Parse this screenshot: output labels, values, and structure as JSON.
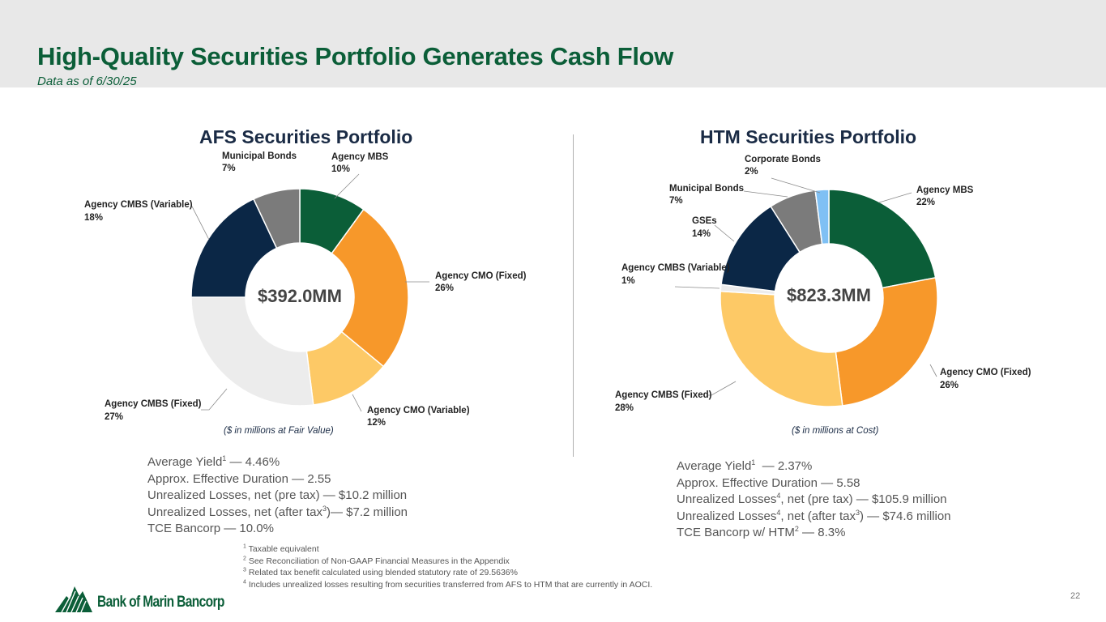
{
  "header": {
    "title": "High-Quality Securities Portfolio Generates Cash Flow",
    "subtitle": "Data as of 6/30/25"
  },
  "colors": {
    "green": "#0b5e38",
    "orange": "#f7982a",
    "light_orange": "#fdc966",
    "light_gray": "#ececec",
    "navy": "#0b2746",
    "gray": "#7b7b7b",
    "light_blue": "#7fc0f4"
  },
  "chart_data": [
    {
      "type": "pie",
      "title": "AFS Securities Portfolio",
      "center_label": "$392.0MM",
      "caption": "($ in millions at Fair Value)",
      "categories": [
        "Agency MBS",
        "Agency CMO (Fixed)",
        "Agency CMO (Variable)",
        "Agency CMBS (Fixed)",
        "Agency CMBS (Variable)",
        "Municipal Bonds"
      ],
      "values": [
        10,
        26,
        12,
        27,
        18,
        7
      ],
      "value_labels": [
        "10%",
        "26%",
        "12%",
        "27%",
        "18%",
        "7%"
      ],
      "colors": [
        "#0b5e38",
        "#f7982a",
        "#fdc966",
        "#ececec",
        "#0b2746",
        "#7b7b7b"
      ]
    },
    {
      "type": "pie",
      "title": "HTM Securities Portfolio",
      "center_label": "$823.3MM",
      "caption": "($ in millions at Cost)",
      "categories": [
        "Agency MBS",
        "Agency CMO (Fixed)",
        "Agency CMBS (Fixed)",
        "Agency CMBS (Variable)",
        "GSEs",
        "Municipal Bonds",
        "Corporate Bonds"
      ],
      "values": [
        22,
        26,
        28,
        1,
        14,
        7,
        2
      ],
      "value_labels": [
        "22%",
        "26%",
        "28%",
        "1%",
        "14%",
        "7%",
        "2%"
      ],
      "colors": [
        "#0b5e38",
        "#f7982a",
        "#fdc966",
        "#ececec",
        "#0b2746",
        "#7b7b7b",
        "#7fc0f4"
      ]
    }
  ],
  "afs_metrics": {
    "yield_label": "Average Yield",
    "yield_sup": "1",
    "yield_value": " — 4.46%",
    "duration": "Approx. Effective Duration — 2.55",
    "unrealized_pre_tax": "Unrealized Losses, net (pre tax) — $10.2 million",
    "unrealized_after_label": "Unrealized Losses, net (after tax",
    "unrealized_after_sup": "3",
    "unrealized_after_value": ")— $7.2 million",
    "tce": "TCE Bancorp — 10.0%"
  },
  "htm_metrics": {
    "yield_label": "Average Yield",
    "yield_sup": "1",
    "yield_value": "  — 2.37%",
    "duration": "Approx. Effective Duration — 5.58",
    "pre_label": "Unrealized Losses",
    "pre_sup": "4",
    "pre_value": ", net (pre tax) — $105.9 million",
    "after_label": "Unrealized Losses",
    "after_sup": "4",
    "after_mid": ", net (after tax",
    "after_sup2": "3",
    "after_value": ") — $74.6 million",
    "tce_label": "TCE Bancorp w/ HTM",
    "tce_sup": "2",
    "tce_value": " — 8.3%"
  },
  "footnotes": [
    {
      "num": "1",
      "text": " Taxable equivalent"
    },
    {
      "num": "2",
      "text": " See Reconciliation of Non-GAAP Financial Measures in the Appendix"
    },
    {
      "num": "3",
      "text": " Related tax benefit calculated using blended statutory rate of 29.5636%"
    },
    {
      "num": "4",
      "text": " Includes unrealized losses resulting from securities transferred from AFS to HTM that are currently in AOCI."
    }
  ],
  "logo_text": "Bank of Marin Bancorp",
  "page_number": "22"
}
